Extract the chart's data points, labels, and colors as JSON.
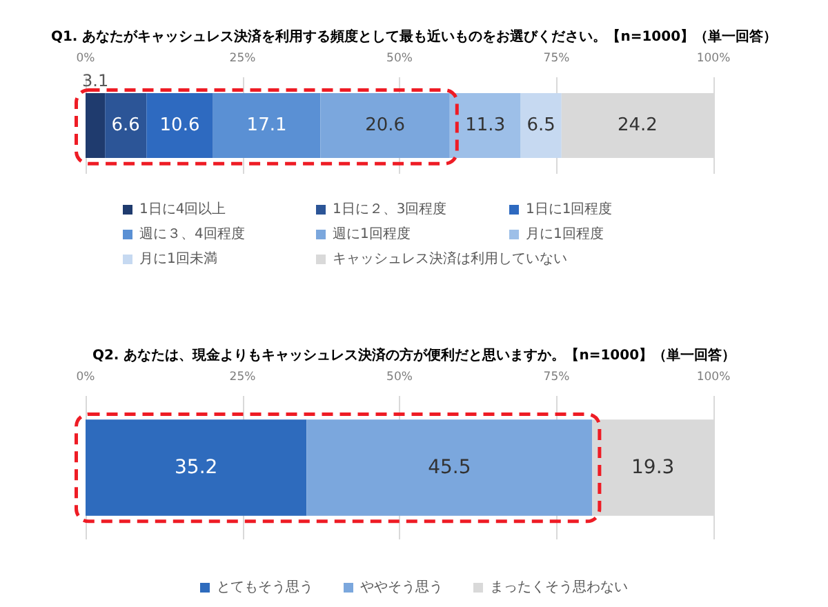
{
  "chart_data": [
    {
      "type": "bar",
      "orientation": "horizontal",
      "stacked": true,
      "title": "Q1. あなたがキャッシュレス決済を利用する頻度として最も近いものをお選びください。【n=1000】（単一回答）",
      "categories": [
        null
      ],
      "series": [
        {
          "name": "1日に4回以上",
          "color": "#1f3b6e",
          "values": [
            3.1
          ]
        },
        {
          "name": "1日に２、3回程度",
          "color": "#2c5597",
          "values": [
            6.6
          ]
        },
        {
          "name": "1日に1回程度",
          "color": "#2e6ac0",
          "values": [
            10.6
          ]
        },
        {
          "name": "週に３、4回程度",
          "color": "#5a90d4",
          "values": [
            17.1
          ]
        },
        {
          "name": "週に1回程度",
          "color": "#7ba7dd",
          "values": [
            20.6
          ]
        },
        {
          "name": "月に1回程度",
          "color": "#9dbfe8",
          "values": [
            11.3
          ]
        },
        {
          "name": "月に1回未満",
          "color": "#c6d9f1",
          "values": [
            6.5
          ]
        },
        {
          "name": "キャッシュレス決済は利用していない",
          "color": "#d9d9d9",
          "values": [
            24.2
          ]
        }
      ],
      "xlim": [
        0,
        100
      ],
      "xticks": [
        {
          "value": 0,
          "label": "0%"
        },
        {
          "value": 25,
          "label": "25%"
        },
        {
          "value": 50,
          "label": "50%"
        },
        {
          "value": 75,
          "label": "75%"
        },
        {
          "value": 100,
          "label": "100%"
        }
      ],
      "grid": "x",
      "legend": "bottom",
      "tick_labels": "x",
      "data_labels": true
    },
    {
      "type": "bar",
      "orientation": "horizontal",
      "stacked": true,
      "title": "Q2. あなたは、現金よりもキャッシュレス決済の方が便利だと思いますか。【n=1000】（単一回答）",
      "categories": [
        null
      ],
      "series": [
        {
          "name": "とてもそう思う",
          "color": "#2e6bbd",
          "values": [
            35.2
          ]
        },
        {
          "name": "ややそう思う",
          "color": "#7ba7dd",
          "values": [
            45.5
          ]
        },
        {
          "name": "まったくそう思わない",
          "color": "#d9d9d9",
          "values": [
            19.3
          ]
        }
      ],
      "xlim": [
        0,
        100
      ],
      "xticks": [
        {
          "value": 0,
          "label": "0%"
        },
        {
          "value": 25,
          "label": "25%"
        },
        {
          "value": 50,
          "label": "50%"
        },
        {
          "value": 75,
          "label": "75%"
        },
        {
          "value": 100,
          "label": "100%"
        }
      ],
      "grid": "x",
      "legend": "bottom",
      "tick_labels": "x",
      "data_labels": true
    }
  ]
}
